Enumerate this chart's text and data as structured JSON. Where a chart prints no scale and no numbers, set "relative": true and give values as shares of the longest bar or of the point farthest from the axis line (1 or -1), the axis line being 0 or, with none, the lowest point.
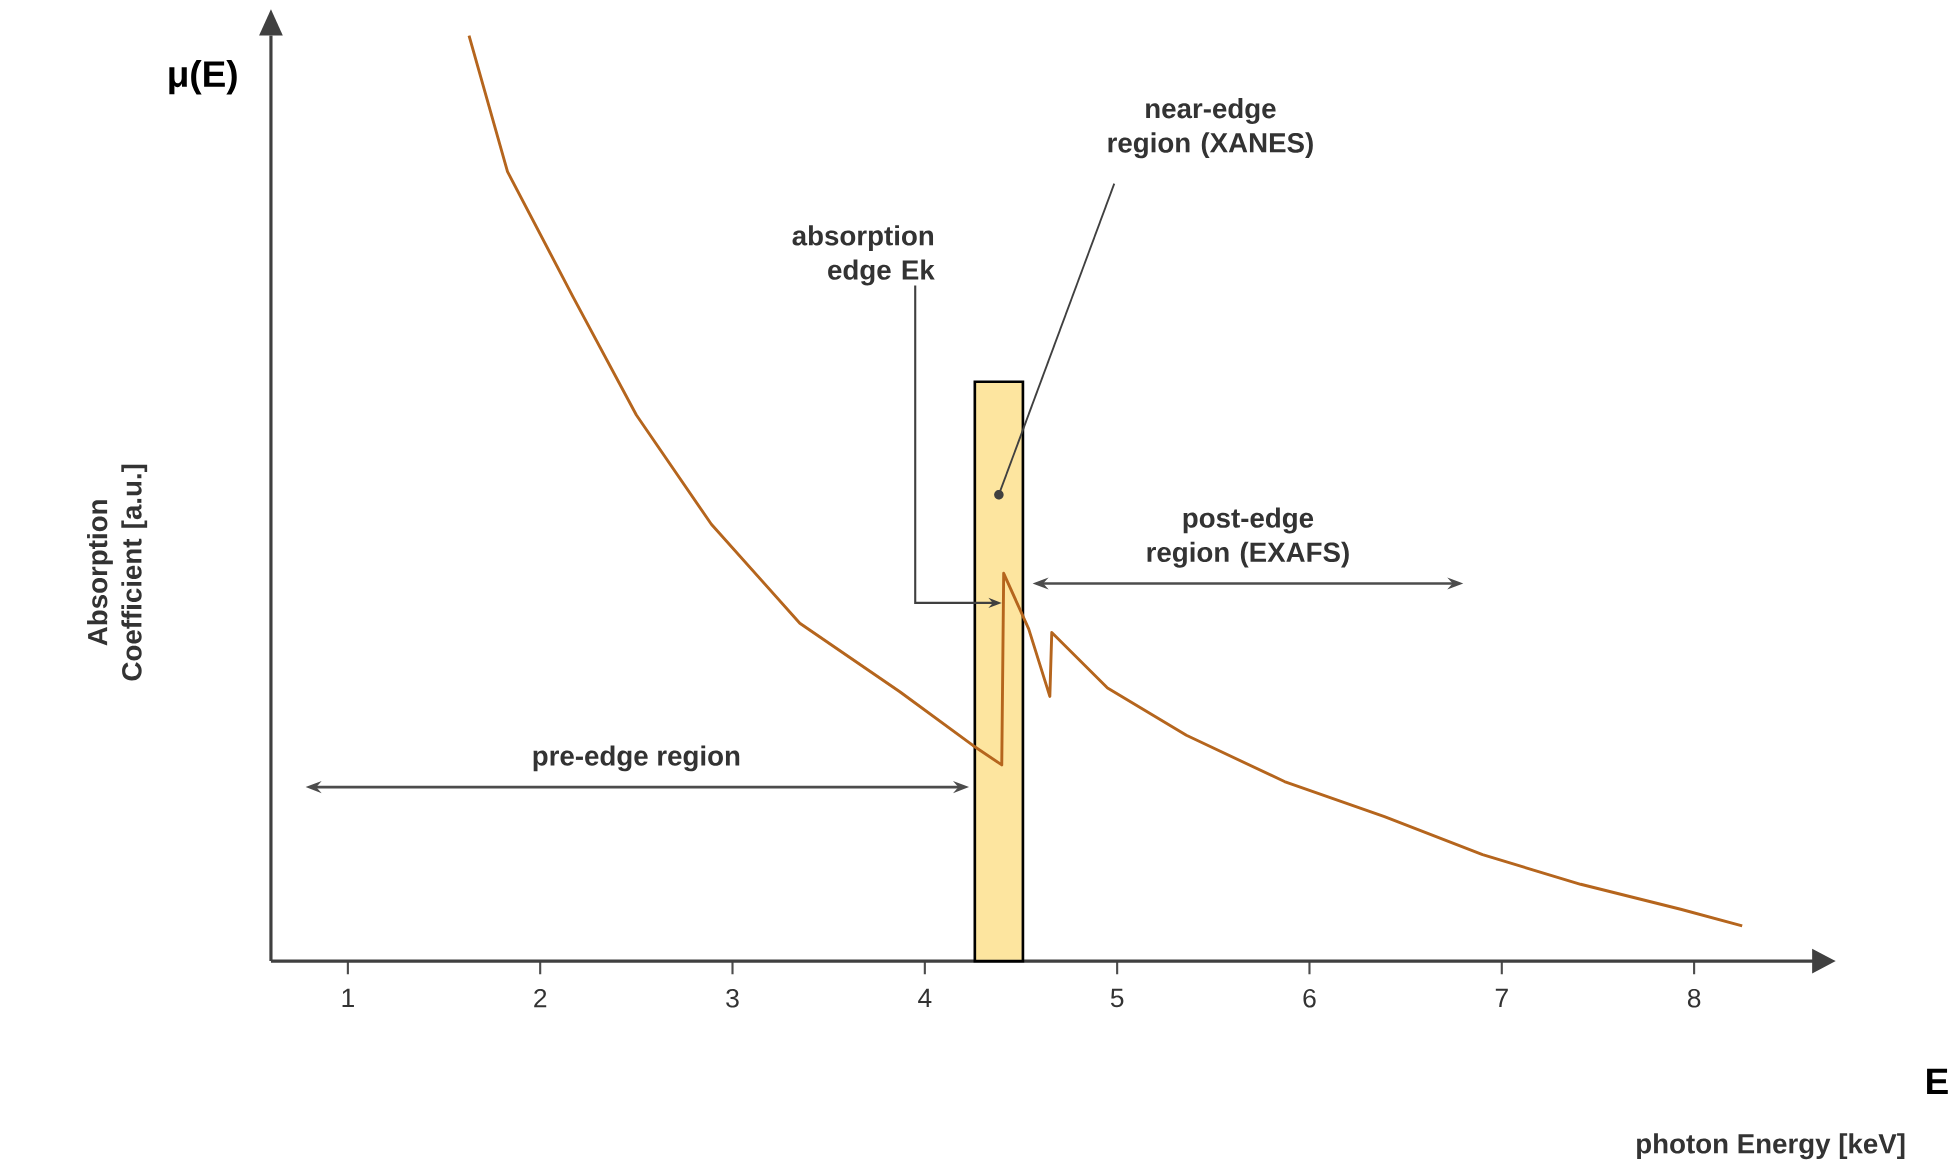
{
  "chart_data": {
    "type": "line",
    "relative": true,
    "xlabel": "photon Energy [keV]",
    "ylabel": "Absorption Coefficient [a.u.]",
    "xlim": [
      0.6,
      8.6
    ],
    "xticks": [
      1,
      2,
      3,
      4,
      5,
      6,
      7,
      8
    ],
    "series": [
      {
        "color": "#b5651d",
        "x": [
          1.63,
          1.83,
          2.17,
          2.5,
          2.89,
          3.35,
          3.87,
          4.25,
          4.4,
          4.41,
          4.54,
          4.65,
          4.66,
          4.95,
          5.36,
          5.87,
          6.39,
          6.9,
          7.41,
          7.93,
          8.25
        ],
        "values": [
          1.0,
          0.853,
          0.718,
          0.59,
          0.472,
          0.365,
          0.291,
          0.233,
          0.212,
          0.419,
          0.359,
          0.286,
          0.355,
          0.295,
          0.244,
          0.194,
          0.156,
          0.115,
          0.083,
          0.056,
          0.038
        ]
      }
    ],
    "bands": [
      {
        "axis": "x",
        "from": 4.26,
        "to": 4.51,
        "label": "near-edge region (XANES)",
        "color": "#fde59f"
      }
    ],
    "annotations": [
      {
        "text": "absorption edge Ek",
        "x": 4.4,
        "y": 0.387
      },
      "pre-edge region",
      "post-edge region (EXAFS)",
      "μ(E)",
      "E"
    ]
  }
}
